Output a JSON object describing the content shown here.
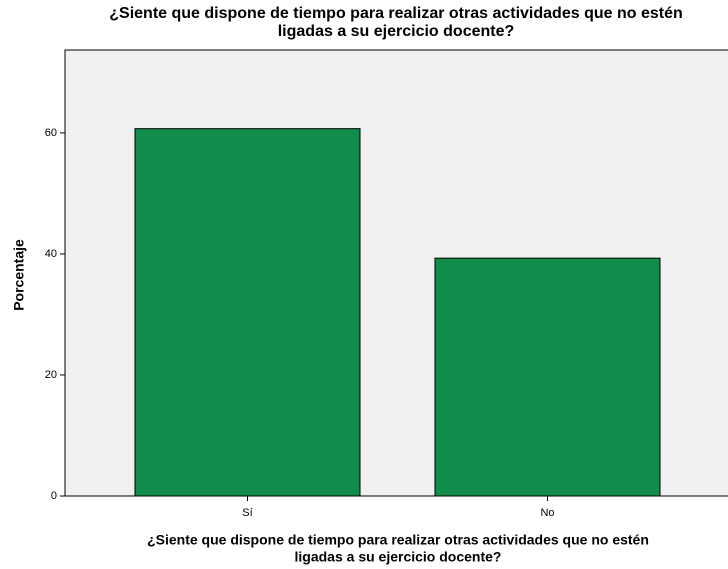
{
  "chart_data": {
    "type": "bar",
    "title": [
      "¿Siente que dispone de tiempo para realizar otras actividades que no estén",
      "ligadas a su ejercicio docente?"
    ],
    "x_label": [
      "¿Siente que dispone de tiempo para realizar otras actividades que no estén",
      "ligadas a su ejercicio docente?"
    ],
    "y_label": "Porcentaje",
    "categories": [
      "Sí",
      "No"
    ],
    "values": [
      60.7,
      39.3
    ],
    "color": "#128c4a",
    "ylim": [
      0,
      73.7
    ],
    "yticks": [
      0,
      20,
      40,
      60
    ]
  }
}
